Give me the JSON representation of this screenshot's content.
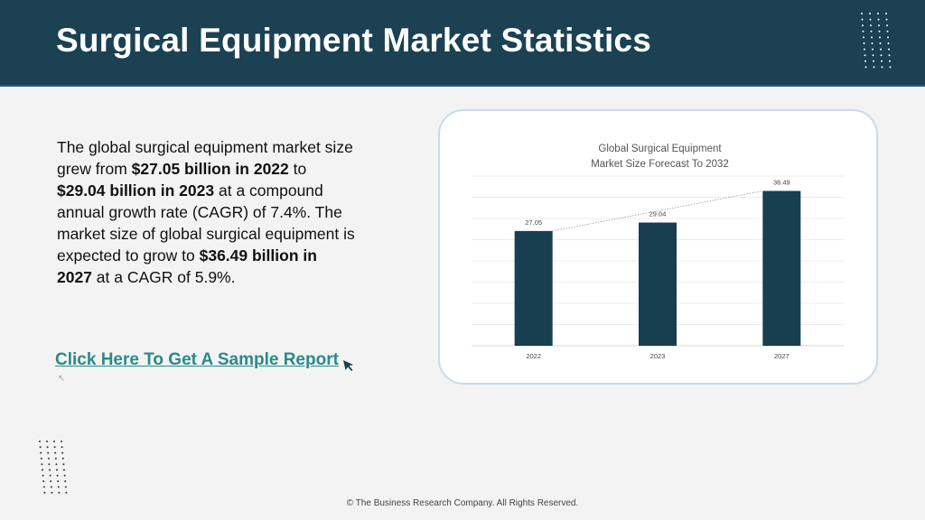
{
  "header": {
    "title": "Surgical Equipment Market Statistics"
  },
  "description": {
    "p1": "The global surgical equipment market size grew from ",
    "b1": "$27.05 billion in 2022",
    "p2": " to ",
    "b2": "$29.04 billion in 2023",
    "p3": " at a compound annual growth rate (CAGR) of 7.4%. The market size of global surgical equipment is expected to grow to ",
    "b3": "$36.49 billion in 2027",
    "p4": " at a CAGR of 5.9%."
  },
  "cta": {
    "label": "Click Here To Get A Sample Report",
    "icon": "cursor-arrow-icon"
  },
  "colors": {
    "header": "#1b4153",
    "bar": "#173f4f",
    "link": "#2a8a8a"
  },
  "chart_data": {
    "type": "bar",
    "title_line1": "Global Surgical Equipment",
    "title_line2": "Market Size Forecast To 2032",
    "categories": [
      "2022",
      "2023",
      "2027"
    ],
    "values": [
      27.05,
      29.04,
      36.49
    ],
    "value_labels": [
      "27.05",
      "29.04",
      "36.49"
    ],
    "ylim": [
      0,
      40
    ],
    "grid": true,
    "trendline": "dotted",
    "xlabel": "",
    "ylabel": ""
  },
  "footer": {
    "text": "© The Business Research Company. All Rights Reserved."
  }
}
